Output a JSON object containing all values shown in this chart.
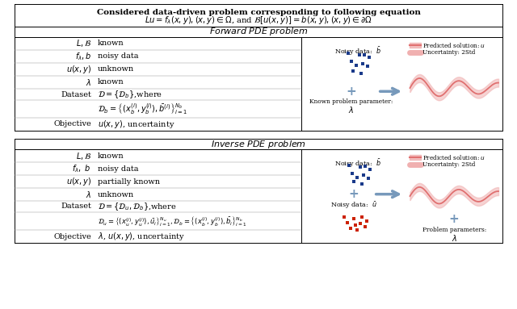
{
  "title_main": "Considered data-driven problem corresponding to following equation",
  "forward_title": "Forward PDE problem",
  "inverse_title": "Inverse PDE problem",
  "bg_color": "#ffffff",
  "blue_dot_color": "#1a3a8a",
  "red_dot_color": "#cc2200",
  "arrow_color": "#7799bb",
  "wave_color": "#e07070",
  "wave_fill_color": "#f0b0b0",
  "border_color": "#000000"
}
